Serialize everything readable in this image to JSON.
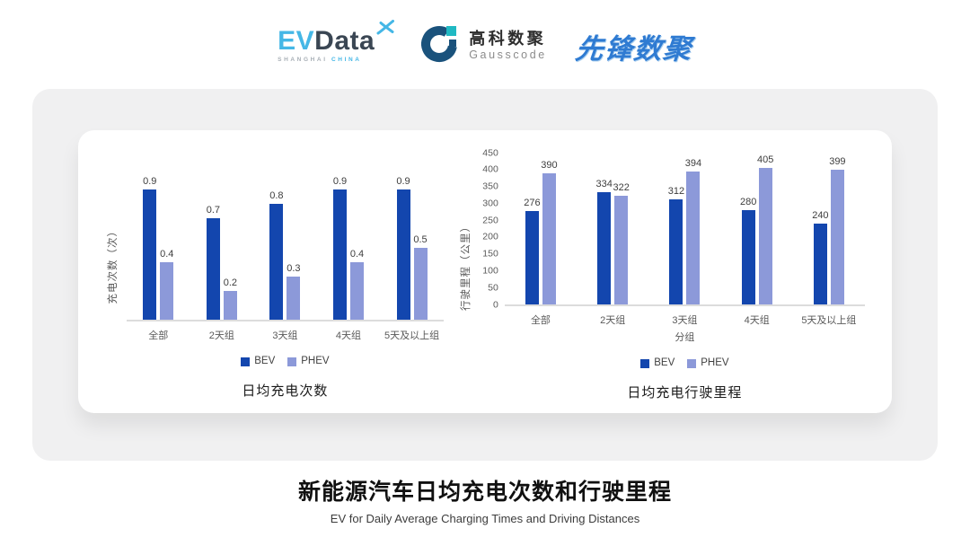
{
  "header": {
    "evdata": {
      "ev": "EV",
      "data": "Data",
      "sub_left": "SHANGHAI",
      "sub_right": "CHINA"
    },
    "gausscode": {
      "cn": "高科数聚",
      "en": "Gausscode"
    },
    "pioneer": {
      "text": "先锋数聚"
    }
  },
  "colors": {
    "bev": "#1346AE",
    "phev": "#8C99D9",
    "evdata_accent": "#45B7E6",
    "evdata_dark": "#3A4653",
    "gausscode_navy": "#1A527C",
    "gausscode_teal": "#20B9C3",
    "pioneer_blue": "#2F7BD2",
    "card_gray": "#F0F0F1"
  },
  "chart_data": [
    {
      "type": "bar",
      "title": "日均充电次数",
      "ylabel": "充电次数（次）",
      "xlabel": "",
      "categories": [
        "全部",
        "2天组",
        "3天组",
        "4天组",
        "5天及以上组"
      ],
      "series": [
        {
          "name": "BEV",
          "color": "#1346AE",
          "values": [
            0.9,
            0.7,
            0.8,
            0.9,
            0.9
          ]
        },
        {
          "name": "PHEV",
          "color": "#8C99D9",
          "values": [
            0.4,
            0.2,
            0.3,
            0.4,
            0.5
          ]
        }
      ],
      "ylim": [
        0,
        1.0
      ],
      "yticks": [],
      "grid": false,
      "legend_position": "bottom",
      "data_labels": true
    },
    {
      "type": "bar",
      "title": "日均充电行驶里程",
      "ylabel": "行驶里程（公里）",
      "xlabel": "分组",
      "categories": [
        "全部",
        "2天组",
        "3天组",
        "4天组",
        "5天及以上组"
      ],
      "series": [
        {
          "name": "BEV",
          "color": "#1346AE",
          "values": [
            276,
            334,
            312,
            280,
            240
          ]
        },
        {
          "name": "PHEV",
          "color": "#8C99D9",
          "values": [
            390,
            322,
            394,
            405,
            399
          ]
        }
      ],
      "ylim": [
        0,
        450
      ],
      "yticks": [
        0,
        50,
        100,
        150,
        200,
        250,
        300,
        350,
        400,
        450
      ],
      "grid": false,
      "legend_position": "bottom",
      "data_labels": true
    }
  ],
  "footer": {
    "title": "新能源汽车日均充电次数和行驶里程",
    "subtitle": "EV for Daily Average Charging Times and Driving Distances"
  }
}
